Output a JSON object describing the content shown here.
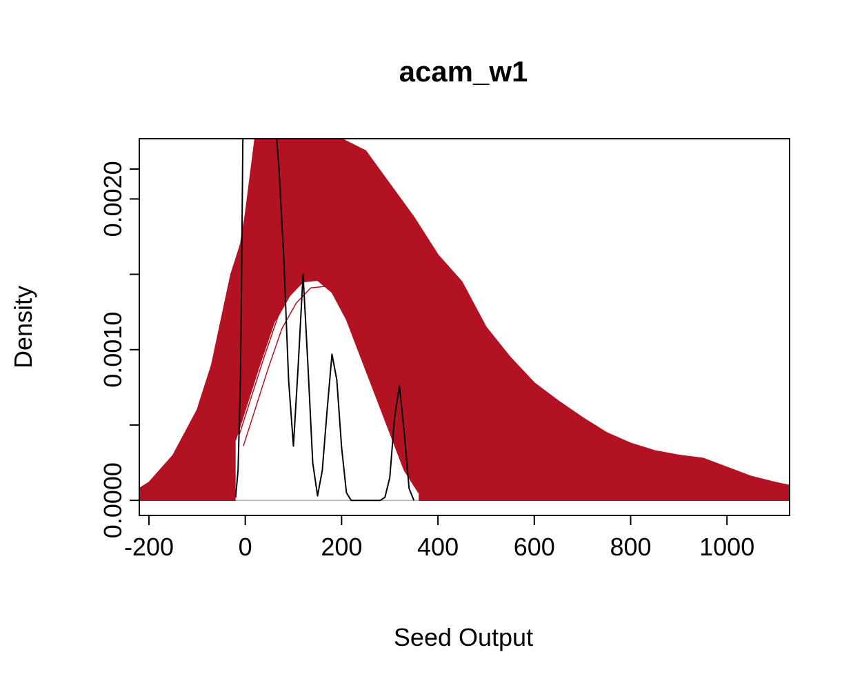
{
  "chart_data": {
    "type": "line",
    "title": "acam_w1",
    "xlabel": "Seed Output",
    "ylabel": "Density",
    "xlim": [
      -220,
      1130
    ],
    "ylim": [
      -0.0001,
      0.0024
    ],
    "x_ticks": [
      -200,
      0,
      200,
      400,
      600,
      800,
      1000
    ],
    "y_ticks": [
      0.0,
      0.0005,
      0.001,
      0.0015,
      0.002
    ],
    "y_tick_labels": [
      "0.0000",
      "",
      "0.0010",
      "",
      "0.0020"
    ],
    "grid": false,
    "legend": "none",
    "colors": {
      "simulated": "#B31222",
      "observed": "#000000",
      "baseline": "#BEBEBE"
    },
    "series": [
      {
        "role": "simulated-envelope",
        "x": [
          -220,
          -200,
          -150,
          -100,
          -70,
          -50,
          -30,
          -10,
          0,
          20,
          50,
          100,
          150,
          200,
          250,
          300,
          350,
          400,
          450,
          500,
          550,
          600,
          650,
          700,
          750,
          800,
          850,
          900,
          950,
          1000,
          1050,
          1100,
          1130
        ],
        "upper": [
          8e-05,
          0.00012,
          0.0003,
          0.0006,
          0.0009,
          0.0012,
          0.0015,
          0.0017,
          0.0019,
          0.0024,
          0.0024,
          0.0024,
          0.0024,
          0.0024,
          0.00232,
          0.0021,
          0.00188,
          0.00163,
          0.00145,
          0.00115,
          0.00095,
          0.00078,
          0.00066,
          0.00055,
          0.00045,
          0.00038,
          0.00033,
          0.0003,
          0.00028,
          0.00022,
          0.00016,
          0.00012,
          0.0001
        ],
        "lower": [
          0.0,
          0.0,
          0.0,
          0.0,
          0.0,
          0.0,
          0.0,
          0.0,
          0.0,
          0.0,
          0.0,
          0.0,
          0.0,
          0.0,
          0.0,
          0.0,
          0.0,
          0.0,
          0.0,
          0.0,
          0.0,
          0.0,
          0.0,
          0.0,
          0.0,
          0.0,
          0.0,
          0.0,
          0.0,
          0.0,
          0.0,
          0.0,
          0.0
        ]
      },
      {
        "role": "simulated-inner",
        "x": [
          -20,
          0,
          30,
          60,
          90,
          120,
          150,
          180,
          210,
          240,
          270,
          300,
          330,
          360
        ],
        "values": [
          0.0004,
          0.0006,
          0.0009,
          0.00118,
          0.00135,
          0.00145,
          0.00146,
          0.00138,
          0.0012,
          0.00095,
          0.0007,
          0.00045,
          0.0002,
          5e-05
        ]
      },
      {
        "role": "observed",
        "x": [
          -20,
          -15,
          -10,
          -8,
          -5,
          0,
          10,
          20,
          30,
          40,
          50,
          60,
          65,
          70,
          80,
          90,
          100,
          110,
          120,
          130,
          140,
          150,
          160,
          170,
          180,
          190,
          200,
          210,
          220,
          240,
          260,
          280,
          290,
          300,
          310,
          320,
          330,
          340,
          350
        ],
        "values": [
          2e-05,
          0.0002,
          0.0008,
          0.0014,
          0.0024,
          0.0024,
          0.0024,
          0.0024,
          0.0024,
          0.0024,
          0.0024,
          0.0024,
          0.0024,
          0.0022,
          0.0016,
          0.0008,
          0.00036,
          0.0009,
          0.0015,
          0.0009,
          0.00025,
          3e-05,
          0.0002,
          0.0006,
          0.00097,
          0.0008,
          0.00035,
          5e-05,
          0.0,
          0.0,
          0.0,
          0.0,
          2e-05,
          0.00015,
          0.00055,
          0.00076,
          0.00045,
          8e-05,
          0.0
        ]
      }
    ]
  }
}
